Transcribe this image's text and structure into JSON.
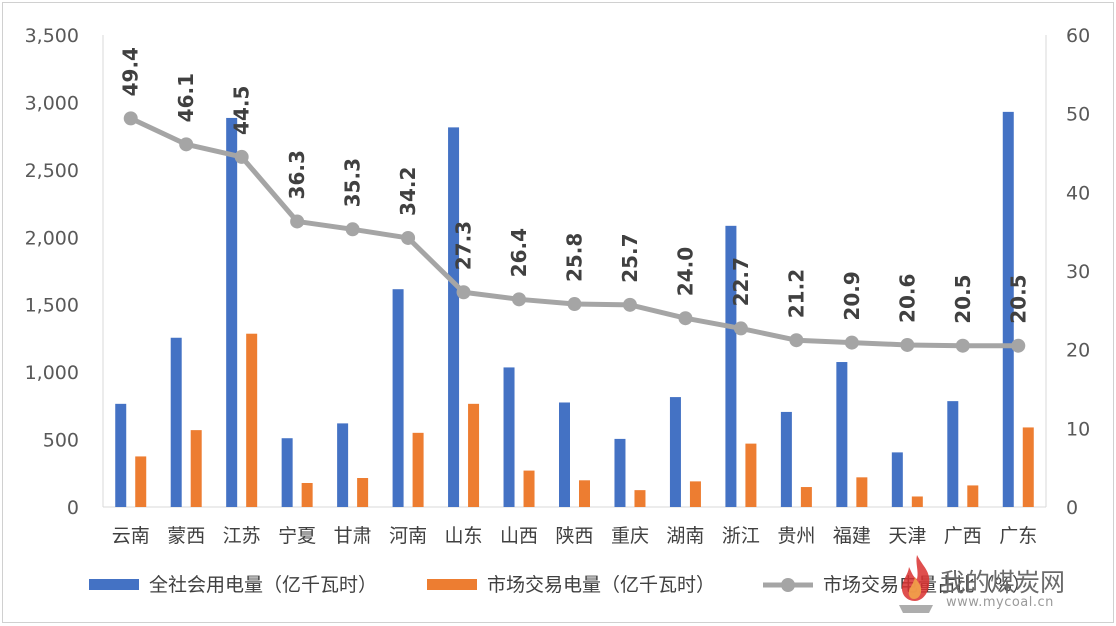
{
  "chart_data": {
    "type": "bar",
    "categories": [
      "云南",
      "蒙西",
      "江苏",
      "宁夏",
      "甘肃",
      "河南",
      "山东",
      "山西",
      "陕西",
      "重庆",
      "湖南",
      "浙江",
      "贵州",
      "福建",
      "天津",
      "广西",
      "广东"
    ],
    "series": [
      {
        "name": "全社会用电量（亿千瓦时）",
        "type": "bar",
        "axis": "left",
        "color": "#4472C4",
        "values": [
          765,
          1255,
          2885,
          510,
          620,
          1615,
          2815,
          1035,
          775,
          505,
          815,
          2085,
          705,
          1075,
          405,
          785,
          2930
        ]
      },
      {
        "name": "市场交易电量（亿千瓦时）",
        "type": "bar",
        "axis": "left",
        "color": "#ED7D31",
        "values": [
          375,
          570,
          1285,
          178,
          215,
          550,
          765,
          270,
          198,
          125,
          190,
          470,
          148,
          220,
          78,
          160,
          590
        ]
      },
      {
        "name": "市场交易电量占比（%）",
        "type": "line",
        "axis": "right",
        "color": "#A5A5A5",
        "values": [
          49.4,
          46.1,
          44.5,
          36.3,
          35.3,
          34.2,
          27.3,
          26.4,
          25.8,
          25.7,
          24.0,
          22.7,
          21.2,
          20.9,
          20.6,
          20.5,
          20.5
        ]
      }
    ],
    "data_labels": [
      "49.4",
      "46.1",
      "44.5",
      "36.3",
      "35.3",
      "34.2",
      "27.3",
      "26.4",
      "25.8",
      "25.7",
      "24.0",
      "22.7",
      "21.2",
      "20.9",
      "20.6",
      "20.5",
      "20.5"
    ],
    "y_left": {
      "min": 0,
      "max": 3500,
      "ticks": [
        "0",
        "500",
        "1,000",
        "1,500",
        "2,000",
        "2,500",
        "3,000",
        "3,500"
      ]
    },
    "y_right": {
      "min": 0,
      "max": 60,
      "ticks": [
        "0",
        "10",
        "20",
        "30",
        "40",
        "50",
        "60"
      ]
    },
    "title": "",
    "grid": false,
    "legend_position": "bottom"
  },
  "legend": {
    "item1": "全社会用电量（亿千瓦时）",
    "item2": "市场交易电量（亿千瓦时）",
    "item3": "市场交易电量占比（%）"
  },
  "watermark": {
    "text": "我的煤炭网",
    "url": "www.mycoal.cn"
  }
}
